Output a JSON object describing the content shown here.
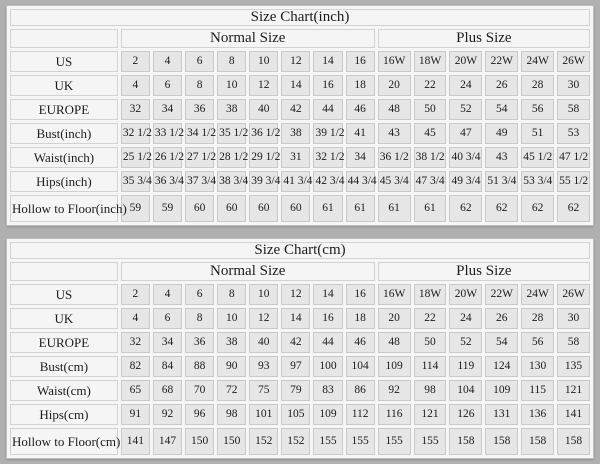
{
  "page": {
    "background": "#b0b0b0",
    "panel_background": "#f6f6f6",
    "cell_background": "#e6e6e6",
    "border_color": "#c9c9c9",
    "text_color": "#1c1c1c"
  },
  "chart_data": [
    {
      "type": "table",
      "title": "Size Chart(inch)",
      "groups": [
        {
          "label": "Normal Size",
          "span": 8
        },
        {
          "label": "Plus Size",
          "span": 6
        }
      ],
      "rows": [
        {
          "label": "US",
          "values": [
            "2",
            "4",
            "6",
            "8",
            "10",
            "12",
            "14",
            "16",
            "16W",
            "18W",
            "20W",
            "22W",
            "24W",
            "26W"
          ]
        },
        {
          "label": "UK",
          "values": [
            "4",
            "6",
            "8",
            "10",
            "12",
            "14",
            "16",
            "18",
            "20",
            "22",
            "24",
            "26",
            "28",
            "30"
          ]
        },
        {
          "label": "EUROPE",
          "values": [
            "32",
            "34",
            "36",
            "38",
            "40",
            "42",
            "44",
            "46",
            "48",
            "50",
            "52",
            "54",
            "56",
            "58"
          ]
        },
        {
          "label": "Bust(inch)",
          "values": [
            "32 1/2",
            "33 1/2",
            "34 1/2",
            "35 1/2",
            "36 1/2",
            "38",
            "39 1/2",
            "41",
            "43",
            "45",
            "47",
            "49",
            "51",
            "53"
          ]
        },
        {
          "label": "Waist(inch)",
          "values": [
            "25 1/2",
            "26 1/2",
            "27 1/2",
            "28 1/2",
            "29 1/2",
            "31",
            "32 1/2",
            "34",
            "36 1/2",
            "38 1/2",
            "40 3/4",
            "43",
            "45 1/2",
            "47 1/2"
          ]
        },
        {
          "label": "Hips(inch)",
          "values": [
            "35 3/4",
            "36 3/4",
            "37 3/4",
            "38 3/4",
            "39 3/4",
            "41 3/4",
            "42 3/4",
            "44 3/4",
            "45 3/4",
            "47 3/4",
            "49 3/4",
            "51 3/4",
            "53 3/4",
            "55 1/2"
          ]
        },
        {
          "label": "Hollow to Floor(inch)",
          "values": [
            "59",
            "59",
            "60",
            "60",
            "60",
            "60",
            "61",
            "61",
            "61",
            "61",
            "62",
            "62",
            "62",
            "62"
          ]
        }
      ]
    },
    {
      "type": "table",
      "title": "Size Chart(cm)",
      "groups": [
        {
          "label": "Normal Size",
          "span": 8
        },
        {
          "label": "Plus Size",
          "span": 6
        }
      ],
      "rows": [
        {
          "label": "US",
          "values": [
            "2",
            "4",
            "6",
            "8",
            "10",
            "12",
            "14",
            "16",
            "16W",
            "18W",
            "20W",
            "22W",
            "24W",
            "26W"
          ]
        },
        {
          "label": "UK",
          "values": [
            "4",
            "6",
            "8",
            "10",
            "12",
            "14",
            "16",
            "18",
            "20",
            "22",
            "24",
            "26",
            "28",
            "30"
          ]
        },
        {
          "label": "EUROPE",
          "values": [
            "32",
            "34",
            "36",
            "38",
            "40",
            "42",
            "44",
            "46",
            "48",
            "50",
            "52",
            "54",
            "56",
            "58"
          ]
        },
        {
          "label": "Bust(cm)",
          "values": [
            "82",
            "84",
            "88",
            "90",
            "93",
            "97",
            "100",
            "104",
            "109",
            "114",
            "119",
            "124",
            "130",
            "135"
          ]
        },
        {
          "label": "Waist(cm)",
          "values": [
            "65",
            "68",
            "70",
            "72",
            "75",
            "79",
            "83",
            "86",
            "92",
            "98",
            "104",
            "109",
            "115",
            "121"
          ]
        },
        {
          "label": "Hips(cm)",
          "values": [
            "91",
            "92",
            "96",
            "98",
            "101",
            "105",
            "109",
            "112",
            "116",
            "121",
            "126",
            "131",
            "136",
            "141"
          ]
        },
        {
          "label": "Hollow to Floor(cm)",
          "values": [
            "141",
            "147",
            "150",
            "150",
            "152",
            "152",
            "155",
            "155",
            "155",
            "155",
            "158",
            "158",
            "158",
            "158"
          ]
        }
      ]
    }
  ]
}
